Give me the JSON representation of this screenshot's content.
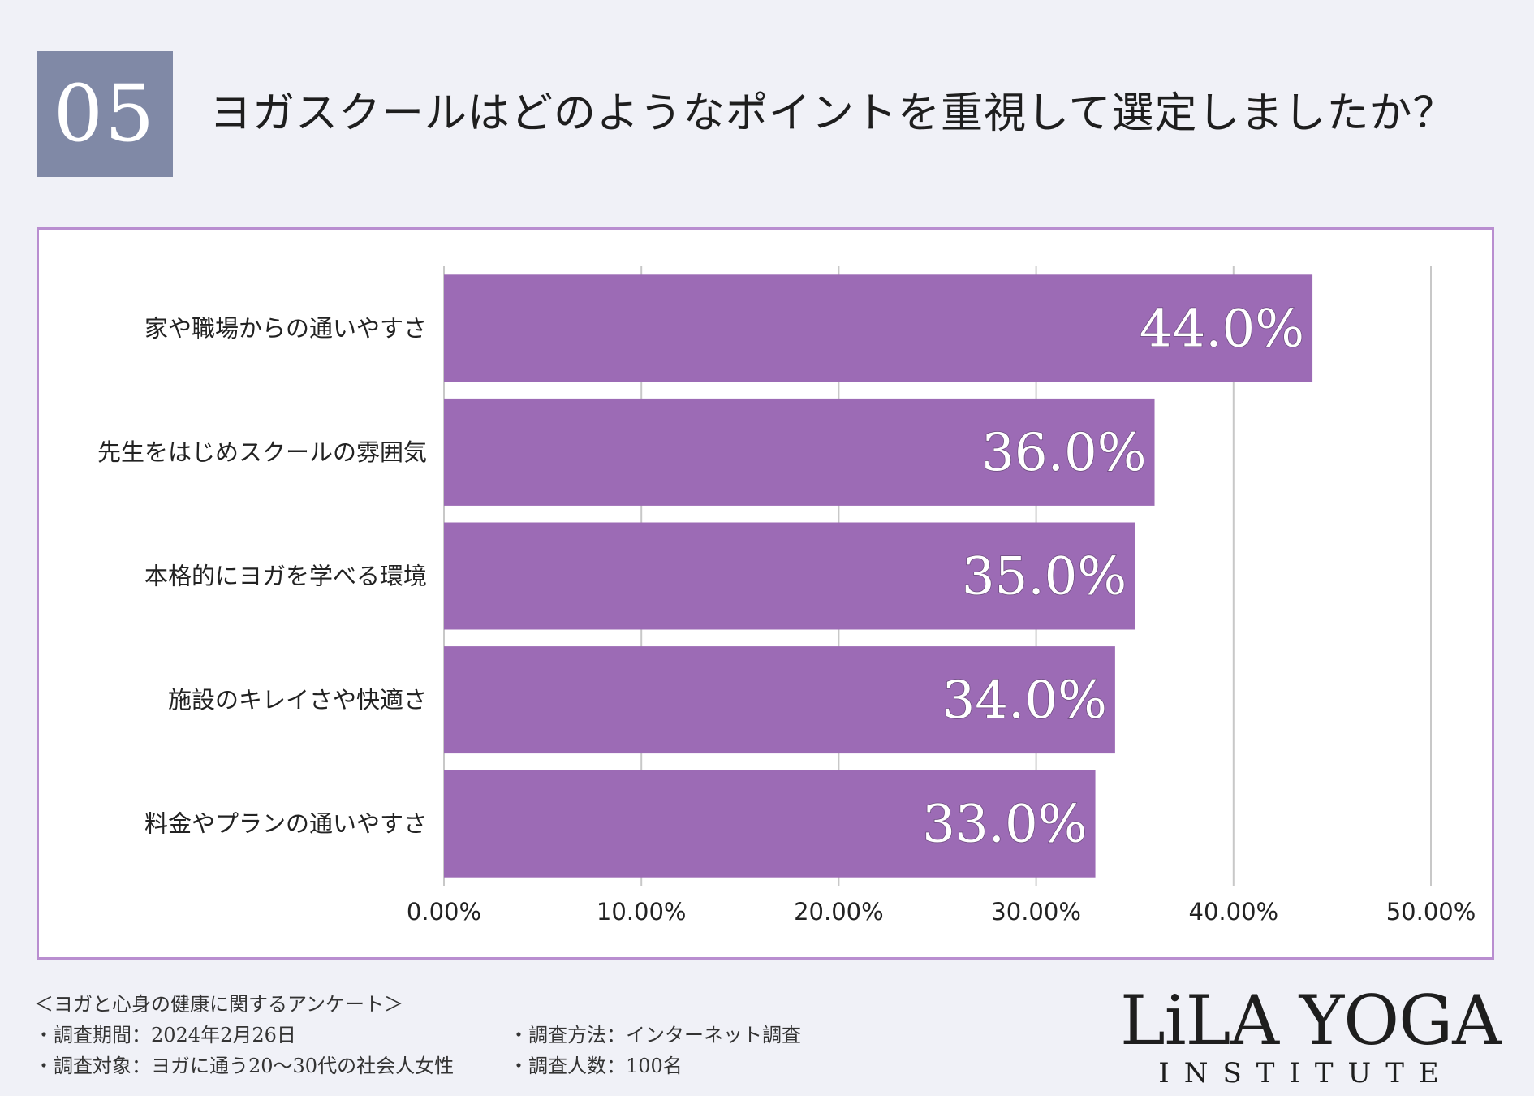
{
  "header": {
    "number": "05",
    "title": "ヨガスクールはどのようなポイントを重視して選定しましたか？"
  },
  "colors": {
    "background": "#f0f1f7",
    "number_box": "#8089a6",
    "panel_border": "#b98ed0",
    "bar": "#9c6bb5",
    "gridline": "#c8c8c8"
  },
  "chart_data": {
    "type": "bar",
    "orientation": "horizontal",
    "categories": [
      "家や職場からの通いやすさ",
      "先生をはじめスクールの雰囲気",
      "本格的にヨガを学べる環境",
      "施設のキレイさや快適さ",
      "料金やプランの通いやすさ"
    ],
    "values": [
      44.0,
      36.0,
      35.0,
      34.0,
      33.0
    ],
    "value_labels": [
      "44.0%",
      "36.0%",
      "35.0%",
      "34.0%",
      "33.0%"
    ],
    "xlim": [
      0,
      50
    ],
    "x_ticks": [
      0,
      10,
      20,
      30,
      40,
      50
    ],
    "x_tick_labels": [
      "0.00%",
      "10.00%",
      "20.00%",
      "30.00%",
      "40.00%",
      "50.00%"
    ],
    "grid": "vertical",
    "legend": "none"
  },
  "footer": {
    "survey_name": "＜ヨガと心身の健康に関するアンケート＞",
    "period": "・調査期間：2024年2月26日",
    "method": "・調査方法：インターネット調査",
    "target": "・調査対象：ヨガに通う20〜30代の社会人女性",
    "count": "・調査人数：100名"
  },
  "logo": {
    "main": "LiLA YOGA",
    "sub": "INSTITUTE"
  }
}
